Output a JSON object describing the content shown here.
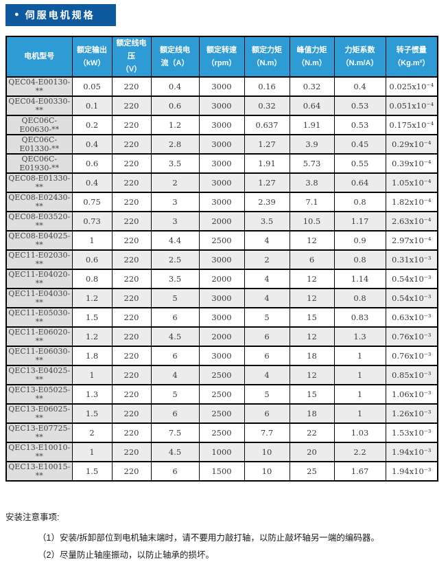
{
  "title": {
    "bullet": "●",
    "text": "伺服电机规格"
  },
  "table": {
    "headers": [
      {
        "line1": "电机型号",
        "line2": ""
      },
      {
        "line1": "额定输出",
        "line2": "（kW）"
      },
      {
        "line1": "额定线电压",
        "line2": "（V）"
      },
      {
        "line1": "额定线电",
        "line2": "流（A）"
      },
      {
        "line1": "额定转速",
        "line2": "（rpm）"
      },
      {
        "line1": "额定力矩",
        "line2": "（N.m）"
      },
      {
        "line1": "峰值力矩",
        "line2": "（N.m）"
      },
      {
        "line1": "力矩系数",
        "line2": "（N.m/A）"
      },
      {
        "line1": "转子惯量",
        "line2": "（Kg.m²）"
      }
    ],
    "rows": [
      [
        "QEC04-E00130-**",
        "0.05",
        "220",
        "0.4",
        "3000",
        "0.16",
        "0.32",
        "0.4",
        "0.025x10⁻⁴"
      ],
      [
        "QEC04-E00330-**",
        "0.1",
        "220",
        "0.6",
        "3000",
        "0.32",
        "0.64",
        "0.53",
        "0.051x10⁻⁴"
      ],
      [
        "QEC06C-E00630-**",
        "0.2",
        "220",
        "1.2",
        "3000",
        "0.637",
        "1.91",
        "0.53",
        "0.175x10⁻⁴"
      ],
      [
        "QEC06C-E01330-**",
        "0.4",
        "220",
        "2.8",
        "3000",
        "1.27",
        "3.9",
        "0.45",
        "0.29x10⁻⁴"
      ],
      [
        "QEC06C-E01930-**",
        "0.6",
        "220",
        "3.5",
        "3000",
        "1.91",
        "5.73",
        "0.55",
        "0.39x10⁻⁴"
      ],
      [
        "QEC08-E01330-**",
        "0.4",
        "220",
        "2",
        "3000",
        "1.27",
        "3.8",
        "0.64",
        "1.05x10⁻⁴"
      ],
      [
        "QEC08-E02430-**",
        "0.75",
        "220",
        "3",
        "3000",
        "2.39",
        "7.1",
        "0.8",
        "1.82x10⁻⁴"
      ],
      [
        "QEC08-E03520-**",
        "0.73",
        "220",
        "3",
        "2000",
        "3.5",
        "10.5",
        "1.17",
        "2.63x10⁻⁴"
      ],
      [
        "QEC08-E04025-**",
        "1",
        "220",
        "4.4",
        "2500",
        "4",
        "12",
        "0.9",
        "2.97x10⁻⁴"
      ],
      [
        "QEC11-E02030-**",
        "0.6",
        "220",
        "2.5",
        "3000",
        "2",
        "6",
        "0.8",
        "0.31x10⁻³"
      ],
      [
        "QEC11-E04020-**",
        "0.8",
        "220",
        "3.5",
        "2000",
        "4",
        "12",
        "1.14",
        "0.54x10⁻³"
      ],
      [
        "QEC11-E04030-**",
        "1.2",
        "220",
        "5",
        "3000",
        "4",
        "12",
        "0.8",
        "0.54x10⁻³"
      ],
      [
        "QEC11-E05030-**",
        "1.5",
        "220",
        "6",
        "3000",
        "5",
        "15",
        "0.83",
        "0.63x10⁻³"
      ],
      [
        "QEC11-E06020-**",
        "1.2",
        "220",
        "4.5",
        "2000",
        "6",
        "12",
        "1.3",
        "0.76x10⁻³"
      ],
      [
        "QEC11-E06030-**",
        "1.8",
        "220",
        "6",
        "3000",
        "6",
        "18",
        "1",
        "0.76x10⁻³"
      ],
      [
        "QEC13-E04025-**",
        "1",
        "220",
        "4",
        "2500",
        "4",
        "12",
        "1",
        "0.85x10⁻³"
      ],
      [
        "QEC13-E05025-**",
        "1.3",
        "220",
        "5",
        "2500",
        "5",
        "15",
        "1",
        "1.06x10⁻³"
      ],
      [
        "QEC13-E06025-**",
        "1.5",
        "220",
        "6",
        "2500",
        "6",
        "18",
        "1",
        "1.26x10⁻³"
      ],
      [
        "QEC13-E07725-**",
        "2",
        "220",
        "7.5",
        "2500",
        "7.7",
        "22",
        "1.03",
        "1.53x10⁻³"
      ],
      [
        "QEC13-E10010-**",
        "1",
        "220",
        "4.5",
        "1000",
        "10",
        "20",
        "2.2",
        "1.94x10⁻³"
      ],
      [
        "QEC13-E10015-**",
        "1.5",
        "220",
        "6",
        "1500",
        "10",
        "25",
        "1.67",
        "1.94x10⁻³"
      ]
    ]
  },
  "notes": {
    "heading": "安装注意事项:",
    "items": [
      "（1）安装/拆卸部位到电机轴末端时，请不要用力敲打轴，以防止敲坏轴另一端的编码器。",
      "（2）尽量防止轴座振动，以防止轴承的损坏。"
    ]
  }
}
